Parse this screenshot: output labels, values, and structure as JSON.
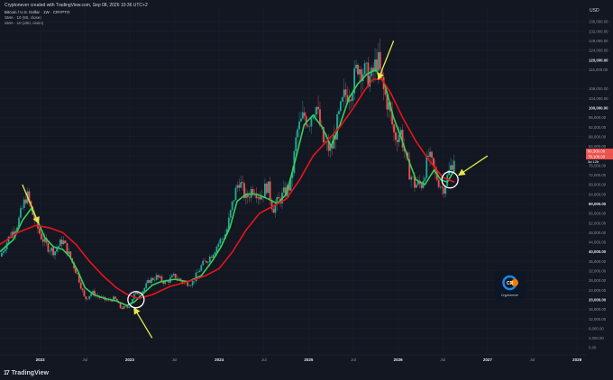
{
  "header": {
    "attribution": "Cryptonever created with TradingView.com, Sep 08, 2026 10:36 UTC+2",
    "symbol": "Bitcoin / U.S. Dollar · 1W · CRYPTO",
    "sma_50": "SMA · 10 (50, close)",
    "sma_200": "SMA · 10 (200, close)"
  },
  "axis": {
    "currency": "USD",
    "price_badge_1": "80,300.00",
    "price_badge_2": "79,100.00",
    "price_badge_3": "3d 12h"
  },
  "brand": {
    "name": "TradingView",
    "mark": "17"
  },
  "logo": {
    "text": "Cryptonever",
    "letters": "CR"
  },
  "colors": {
    "background": "#131722",
    "up": "#26a69a",
    "down": "#ef5350",
    "sma50": "#34d058",
    "sma200": "#e8141c",
    "arrow": "#e6e94a",
    "circle": "#ffffff"
  },
  "chart_data": {
    "type": "candlestick",
    "title": "Bitcoin / U.S. Dollar · 1W · CRYPTO",
    "y_ticks": [
      136000,
      132000,
      128000,
      124000,
      120000,
      116000,
      108000,
      104000,
      100000,
      96000,
      92000,
      88000,
      84000,
      80000,
      76000,
      72000,
      68000,
      64000,
      60000,
      56000,
      52000,
      48000,
      44000,
      40000,
      36000,
      32000,
      28000,
      24000,
      20000,
      16000,
      12000,
      8000,
      4000,
      0
    ],
    "y_tick_labels": [
      "136,000.00",
      "132,000.00",
      "128,000.00",
      "124,000.00",
      "120,000.00",
      "116,000.00",
      "108,000.00",
      "104,000.00",
      "100,000.00",
      "96,000.00",
      "92,000.00",
      "88,000.00",
      "84,000.00",
      "80,000.00",
      "76,000.00",
      "72,000.00",
      "68,000.00",
      "64,000.00",
      "60,000.00",
      "56,000.00",
      "52,000.00",
      "48,000.00",
      "44,000.00",
      "40,000.00",
      "36,000.00",
      "32,000.00",
      "28,000.00",
      "24,000.00",
      "20,000.00",
      "16,000.00",
      "12,000.00",
      "8,000.00",
      "4,000.00",
      "0.00"
    ],
    "bold_ticks": [
      120000,
      100000,
      80000,
      60000,
      40000,
      20000
    ],
    "x_ticks": [
      {
        "label": "2022",
        "bold": true,
        "t": 2022.0
      },
      {
        "label": "Jul",
        "bold": false,
        "t": 2022.5
      },
      {
        "label": "2023",
        "bold": true,
        "t": 2023.0
      },
      {
        "label": "Jul",
        "bold": false,
        "t": 2023.5
      },
      {
        "label": "2024",
        "bold": true,
        "t": 2024.0
      },
      {
        "label": "Jul",
        "bold": false,
        "t": 2024.5
      },
      {
        "label": "2025",
        "bold": true,
        "t": 2025.0
      },
      {
        "label": "Jul",
        "bold": false,
        "t": 2025.5
      },
      {
        "label": "2026",
        "bold": true,
        "t": 2026.0
      },
      {
        "label": "Jul",
        "bold": false,
        "t": 2026.5
      },
      {
        "label": "2027",
        "bold": true,
        "t": 2027.0
      },
      {
        "label": "Jul",
        "bold": false,
        "t": 2027.5
      },
      {
        "label": "2028",
        "bold": true,
        "t": 2028.0
      }
    ],
    "price_path": [
      [
        2021.55,
        38000
      ],
      [
        2021.65,
        46000
      ],
      [
        2021.75,
        52000
      ],
      [
        2021.85,
        64000
      ],
      [
        2021.92,
        55000
      ],
      [
        2022.0,
        47000
      ],
      [
        2022.08,
        42000
      ],
      [
        2022.16,
        40000
      ],
      [
        2022.25,
        45000
      ],
      [
        2022.33,
        38000
      ],
      [
        2022.42,
        30000
      ],
      [
        2022.5,
        20000
      ],
      [
        2022.58,
        23000
      ],
      [
        2022.66,
        21000
      ],
      [
        2022.75,
        19500
      ],
      [
        2022.83,
        20500
      ],
      [
        2022.9,
        16500
      ],
      [
        2022.98,
        16800
      ],
      [
        2023.05,
        22000
      ],
      [
        2023.15,
        24000
      ],
      [
        2023.22,
        28000
      ],
      [
        2023.3,
        29500
      ],
      [
        2023.4,
        27000
      ],
      [
        2023.5,
        30000
      ],
      [
        2023.6,
        27000
      ],
      [
        2023.7,
        27000
      ],
      [
        2023.8,
        34000
      ],
      [
        2023.9,
        38000
      ],
      [
        2024.0,
        44000
      ],
      [
        2024.08,
        48000
      ],
      [
        2024.16,
        62000
      ],
      [
        2024.22,
        70000
      ],
      [
        2024.3,
        62000
      ],
      [
        2024.38,
        67000
      ],
      [
        2024.46,
        63000
      ],
      [
        2024.54,
        68000
      ],
      [
        2024.6,
        58000
      ],
      [
        2024.7,
        63000
      ],
      [
        2024.8,
        68000
      ],
      [
        2024.87,
        90000
      ],
      [
        2024.95,
        97000
      ],
      [
        2025.0,
        94000
      ],
      [
        2025.08,
        102000
      ],
      [
        2025.16,
        86000
      ],
      [
        2025.25,
        82000
      ],
      [
        2025.33,
        95000
      ],
      [
        2025.4,
        105000
      ],
      [
        2025.48,
        108000
      ],
      [
        2025.55,
        118000
      ],
      [
        2025.62,
        115000
      ],
      [
        2025.7,
        112000
      ],
      [
        2025.77,
        121000
      ],
      [
        2025.83,
        108000
      ],
      [
        2025.9,
        100000
      ],
      [
        2025.96,
        88000
      ],
      [
        2026.03,
        90000
      ],
      [
        2026.1,
        76000
      ],
      [
        2026.18,
        68000
      ],
      [
        2026.26,
        68000
      ],
      [
        2026.34,
        80000
      ],
      [
        2026.42,
        72000
      ],
      [
        2026.5,
        66000
      ],
      [
        2026.56,
        72000
      ],
      [
        2026.63,
        80000
      ]
    ],
    "series": [
      {
        "name": "SMA · 10 (50, close)",
        "values": [
          [
            2021.55,
            40000
          ],
          [
            2021.7,
            45000
          ],
          [
            2021.8,
            53000
          ],
          [
            2021.9,
            58000
          ],
          [
            2021.98,
            52000
          ],
          [
            2022.05,
            46000
          ],
          [
            2022.15,
            42000
          ],
          [
            2022.25,
            41000
          ],
          [
            2022.33,
            38000
          ],
          [
            2022.42,
            32000
          ],
          [
            2022.5,
            25000
          ],
          [
            2022.6,
            22000
          ],
          [
            2022.72,
            20500
          ],
          [
            2022.85,
            19500
          ],
          [
            2022.97,
            17500
          ],
          [
            2023.05,
            19000
          ],
          [
            2023.15,
            22500
          ],
          [
            2023.25,
            26000
          ],
          [
            2023.35,
            27500
          ],
          [
            2023.5,
            28500
          ],
          [
            2023.65,
            27500
          ],
          [
            2023.8,
            30000
          ],
          [
            2023.92,
            36000
          ],
          [
            2024.02,
            42000
          ],
          [
            2024.12,
            50000
          ],
          [
            2024.2,
            61000
          ],
          [
            2024.3,
            64000
          ],
          [
            2024.42,
            64000
          ],
          [
            2024.55,
            62000
          ],
          [
            2024.65,
            60000
          ],
          [
            2024.75,
            64000
          ],
          [
            2024.85,
            78000
          ],
          [
            2024.95,
            93000
          ],
          [
            2025.05,
            97000
          ],
          [
            2025.15,
            92000
          ],
          [
            2025.25,
            84000
          ],
          [
            2025.35,
            93000
          ],
          [
            2025.45,
            104000
          ],
          [
            2025.55,
            110000
          ],
          [
            2025.65,
            114000
          ],
          [
            2025.75,
            116000
          ],
          [
            2025.85,
            110000
          ],
          [
            2025.95,
            96000
          ],
          [
            2026.03,
            88000
          ],
          [
            2026.12,
            78000
          ],
          [
            2026.2,
            70000
          ],
          [
            2026.3,
            68000
          ],
          [
            2026.4,
            74000
          ],
          [
            2026.48,
            70000
          ],
          [
            2026.55,
            69000
          ],
          [
            2026.63,
            74000
          ]
        ]
      },
      {
        "name": "SMA · 10 (200, close)",
        "values": [
          [
            2021.55,
            43000
          ],
          [
            2021.75,
            48000
          ],
          [
            2021.95,
            51000
          ],
          [
            2022.1,
            50000
          ],
          [
            2022.25,
            48000
          ],
          [
            2022.4,
            43000
          ],
          [
            2022.55,
            36000
          ],
          [
            2022.7,
            30000
          ],
          [
            2022.85,
            25000
          ],
          [
            2022.98,
            22000
          ],
          [
            2023.1,
            20500
          ],
          [
            2023.25,
            22000
          ],
          [
            2023.45,
            25500
          ],
          [
            2023.65,
            27500
          ],
          [
            2023.85,
            30000
          ],
          [
            2024.0,
            33000
          ],
          [
            2024.15,
            40000
          ],
          [
            2024.3,
            49000
          ],
          [
            2024.45,
            56000
          ],
          [
            2024.6,
            59000
          ],
          [
            2024.75,
            62000
          ],
          [
            2024.9,
            70000
          ],
          [
            2025.05,
            80000
          ],
          [
            2025.2,
            86000
          ],
          [
            2025.35,
            92000
          ],
          [
            2025.5,
            100000
          ],
          [
            2025.62,
            107000
          ],
          [
            2025.72,
            112000
          ],
          [
            2025.82,
            112000
          ],
          [
            2025.92,
            106000
          ],
          [
            2026.05,
            96000
          ],
          [
            2026.2,
            86000
          ],
          [
            2026.35,
            78000
          ],
          [
            2026.5,
            71000
          ],
          [
            2026.63,
            69000
          ]
        ]
      }
    ],
    "annotations": [
      {
        "type": "arrow",
        "from": [
          2021.8,
          68000
        ],
        "to": [
          2021.98,
          52000
        ]
      },
      {
        "type": "arrow",
        "from": [
          2023.25,
          4000
        ],
        "to": [
          2023.05,
          16500
        ]
      },
      {
        "type": "arrow",
        "from": [
          2025.95,
          128000
        ],
        "to": [
          2025.78,
          112000
        ]
      },
      {
        "type": "arrow",
        "from": [
          2027.0,
          80000
        ],
        "to": [
          2026.68,
          72000
        ]
      },
      {
        "type": "circle",
        "at": [
          2023.07,
          20000
        ]
      },
      {
        "type": "circle",
        "at": [
          2026.58,
          70000
        ]
      }
    ]
  }
}
